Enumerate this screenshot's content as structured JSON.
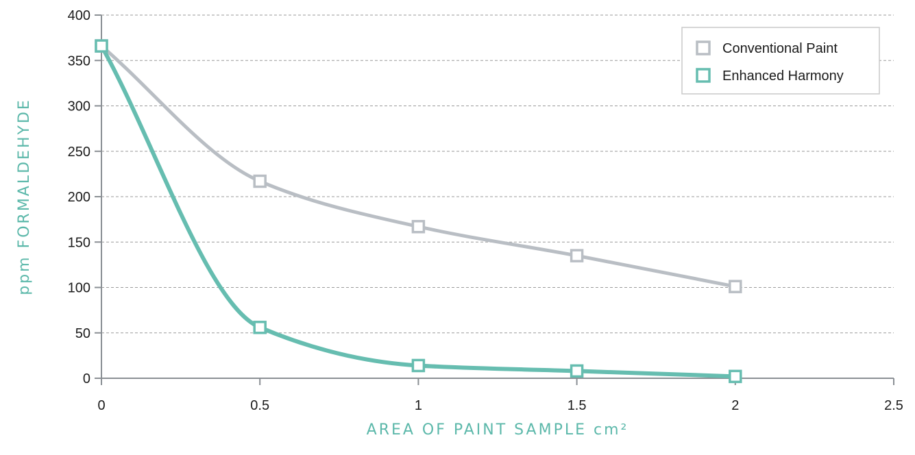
{
  "chart_data": {
    "type": "line",
    "title": "",
    "xlabel": "AREA OF PAINT SAMPLE cm²",
    "ylabel": "ppm FORMALDEHYDE",
    "xlim": [
      0,
      2.5
    ],
    "ylim": [
      0,
      400
    ],
    "x_ticks": [
      "0",
      "0.5",
      "1",
      "1.5",
      "2",
      "2.5"
    ],
    "y_ticks": [
      "0",
      "50",
      "100",
      "150",
      "200",
      "250",
      "300",
      "350",
      "400"
    ],
    "grid": "horizontal-dashed",
    "legend": "top-right",
    "series": [
      {
        "name": "Conventional Paint",
        "color": "#b9bec4",
        "x": [
          0,
          0.5,
          1,
          1.5,
          2
        ],
        "y": [
          366,
          217,
          167,
          135,
          101
        ]
      },
      {
        "name": "Enhanced Harmony",
        "color": "#66bdb0",
        "x": [
          0,
          0.5,
          1,
          1.5,
          2
        ],
        "y": [
          366,
          56,
          14,
          8,
          2
        ]
      }
    ]
  }
}
